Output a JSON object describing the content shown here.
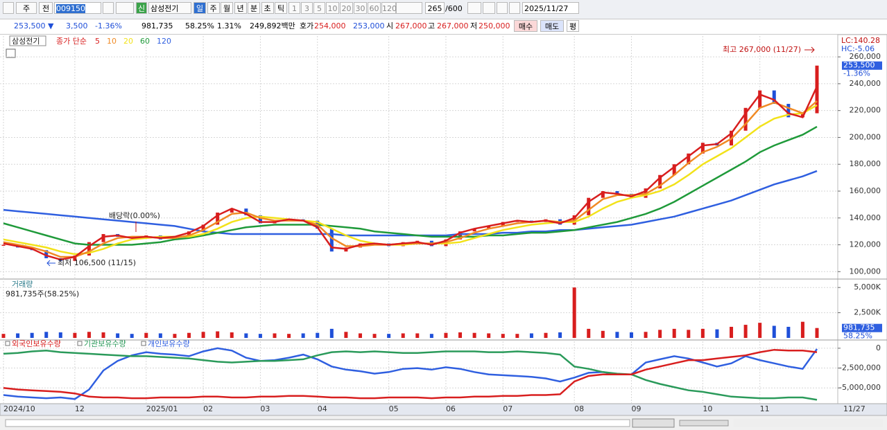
{
  "toolbar": {
    "period_unit": "주",
    "prev": "전",
    "code": "009150",
    "new_badge": "신",
    "name": "삼성전기",
    "periods": [
      "일",
      "주",
      "월",
      "년",
      "분",
      "초",
      "틱"
    ],
    "intervals": [
      "1",
      "3",
      "5",
      "10",
      "20",
      "30",
      "60",
      "120"
    ],
    "count": "265",
    "count_max": "/600",
    "date": "2025/11/27"
  },
  "quote": {
    "price": "253,500 ▼",
    "change": "3,500",
    "change_pct": "-1.36%",
    "volume": "981,735",
    "volume_pct": "58.25%",
    "turnover": "1.31%",
    "amount": "249,892백만",
    "bid_ask_label": "호가",
    "ask": "254,000",
    "bid": "253,000",
    "open_label": "시",
    "open": "267,000",
    "high_label": "고",
    "high": "267,000",
    "low_label": "저",
    "low": "250,000",
    "buy": "매수",
    "sell": "매도",
    "avg": "평"
  },
  "chart_data": [
    {
      "type": "line",
      "title": "삼성전기",
      "legend_prefix": "종가 단순",
      "categories": [
        "2024/10",
        null,
        null,
        null,
        null,
        "12",
        null,
        null,
        null,
        null,
        "2025/01",
        null,
        null,
        null,
        "02",
        null,
        null,
        null,
        "03",
        null,
        null,
        null,
        "04",
        null,
        null,
        null,
        null,
        "05",
        null,
        null,
        null,
        "06",
        null,
        null,
        null,
        "07",
        null,
        null,
        null,
        null,
        "08",
        null,
        null,
        null,
        "09",
        null,
        null,
        null,
        null,
        "10",
        null,
        null,
        null,
        "11",
        null,
        null,
        null,
        null
      ],
      "x_end_label": "11/27",
      "close": [
        120000,
        118000,
        116000,
        110000,
        108000,
        112000,
        122000,
        128000,
        126000,
        125000,
        127000,
        124000,
        126000,
        130000,
        135000,
        144000,
        147000,
        142000,
        136000,
        138000,
        139000,
        138000,
        132000,
        115000,
        118000,
        121000,
        121000,
        119000,
        122000,
        123000,
        119000,
        124000,
        130000,
        132000,
        134000,
        137000,
        138000,
        137000,
        139000,
        135000,
        142000,
        155000,
        160000,
        158000,
        155000,
        162000,
        172000,
        180000,
        188000,
        196000,
        194000,
        205000,
        222000,
        235000,
        225000,
        215000,
        218000,
        253500
      ],
      "close_up_color": "#d81e1e",
      "close_down_color": "#1f4fd8",
      "series": [
        {
          "name": "5",
          "color": "#d81e1e",
          "values": [
            121000,
            119000,
            117000,
            112000,
            109000,
            111000,
            119000,
            126000,
            127000,
            125000,
            126000,
            125000,
            126000,
            129000,
            134000,
            142000,
            147000,
            143000,
            137000,
            137000,
            139000,
            138000,
            133000,
            118000,
            117000,
            120000,
            121000,
            120000,
            121000,
            122000,
            120000,
            123000,
            129000,
            132000,
            134000,
            136000,
            138000,
            137000,
            138000,
            136000,
            140000,
            152000,
            159000,
            158000,
            156000,
            160000,
            170000,
            178000,
            186000,
            194000,
            195000,
            203000,
            218000,
            232000,
            228000,
            218000,
            215000,
            238000
          ]
        },
        {
          "name": "10",
          "color": "#f08a24",
          "values": [
            122000,
            120000,
            118000,
            115000,
            111000,
            111000,
            115000,
            121000,
            125000,
            126000,
            126000,
            125000,
            125000,
            127000,
            131000,
            137000,
            143000,
            144000,
            140000,
            138000,
            138000,
            138000,
            135000,
            125000,
            119000,
            119000,
            120000,
            120000,
            121000,
            121000,
            121000,
            122000,
            125000,
            129000,
            132000,
            134000,
            136000,
            137000,
            138000,
            137000,
            138000,
            146000,
            154000,
            157000,
            157000,
            158000,
            164000,
            172000,
            181000,
            189000,
            193000,
            199000,
            210000,
            222000,
            226000,
            222000,
            218000,
            227000
          ]
        },
        {
          "name": "20",
          "color": "#f2e21a",
          "values": [
            124000,
            122000,
            120000,
            118000,
            115000,
            113000,
            114000,
            117000,
            121000,
            124000,
            125000,
            126000,
            126000,
            126000,
            128000,
            132000,
            137000,
            140000,
            141000,
            140000,
            139000,
            138000,
            137000,
            132000,
            127000,
            123000,
            121000,
            120000,
            120000,
            121000,
            121000,
            121000,
            122000,
            125000,
            128000,
            131000,
            133000,
            135000,
            136000,
            137000,
            137000,
            141000,
            147000,
            152000,
            155000,
            157000,
            160000,
            165000,
            172000,
            180000,
            186000,
            192000,
            200000,
            208000,
            214000,
            217000,
            218000,
            224000
          ]
        },
        {
          "name": "60",
          "color": "#1f9a3a",
          "values": [
            136000,
            133000,
            130000,
            127000,
            124000,
            121000,
            120000,
            120000,
            120000,
            120000,
            121000,
            122000,
            124000,
            125000,
            127000,
            129000,
            131000,
            133000,
            134000,
            135000,
            135000,
            135000,
            135000,
            134000,
            133000,
            132000,
            130000,
            129000,
            128000,
            127000,
            126000,
            126000,
            126000,
            126000,
            127000,
            127000,
            128000,
            129000,
            129000,
            130000,
            131000,
            133000,
            135000,
            137000,
            140000,
            143000,
            147000,
            152000,
            158000,
            164000,
            170000,
            176000,
            182000,
            189000,
            194000,
            198000,
            202000,
            208000
          ]
        },
        {
          "name": "120",
          "color": "#2f5fe0",
          "values": [
            146000,
            145000,
            144000,
            143000,
            142000,
            141000,
            140000,
            139000,
            138000,
            137000,
            136000,
            135000,
            134000,
            132000,
            130000,
            129000,
            128000,
            128000,
            128000,
            128000,
            128000,
            128000,
            128000,
            128000,
            127000,
            127000,
            127000,
            127000,
            127000,
            127000,
            127000,
            127000,
            128000,
            128000,
            128000,
            129000,
            129000,
            130000,
            130000,
            131000,
            131000,
            132000,
            133000,
            134000,
            135000,
            137000,
            139000,
            141000,
            144000,
            147000,
            150000,
            153000,
            157000,
            161000,
            165000,
            168000,
            171000,
            175000
          ]
        }
      ],
      "ylim": [
        95000,
        274000
      ],
      "yticks": [
        {
          "value": 100000,
          "label": "100,000"
        },
        {
          "value": 120000,
          "label": "120,000"
        },
        {
          "value": 140000,
          "label": "140,000"
        },
        {
          "value": 160000,
          "label": "160,000"
        },
        {
          "value": 180000,
          "label": "180,000"
        },
        {
          "value": 200000,
          "label": "200,000"
        },
        {
          "value": 220000,
          "label": "220,000"
        },
        {
          "value": 240000,
          "label": "240,000"
        },
        {
          "value": 260000,
          "label": "260,000"
        }
      ],
      "grid": true,
      "annotations": {
        "high": "최고 267,000 (11/27)",
        "low": "최저 106,500 (11/15)",
        "dividend": "배당락(0.00%)",
        "lc": "LC:140.28",
        "hc": "HC:-5.06",
        "last": "253,500",
        "last_pct": "-1.36%"
      },
      "last_value": 253500
    },
    {
      "type": "bar",
      "title": "거래량",
      "subtitle": "981,735주(58.25%)",
      "color": "#d81e1e",
      "values": [
        400,
        450,
        500,
        600,
        550,
        500,
        600,
        550,
        450,
        400,
        500,
        450,
        400,
        500,
        600,
        650,
        550,
        450,
        400,
        450,
        400,
        450,
        500,
        900,
        600,
        450,
        400,
        400,
        450,
        450,
        400,
        500,
        550,
        500,
        450,
        400,
        400,
        450,
        500,
        550,
        5000,
        900,
        700,
        600,
        550,
        600,
        800,
        900,
        800,
        900,
        850,
        1100,
        1300,
        1500,
        1200,
        1100,
        1600,
        981.735
      ],
      "ylim": [
        0,
        5700
      ],
      "yticks": [
        {
          "value": 2500,
          "label": "2,500K"
        },
        {
          "value": 5000,
          "label": "5,000K"
        }
      ],
      "last_label": "981,735",
      "last_pct": "58.25%"
    },
    {
      "type": "line",
      "series": [
        {
          "name": "외국인보유수량",
          "color": "#d81e1e",
          "values": [
            -5000000,
            -5200000,
            -5300000,
            -5400000,
            -5500000,
            -5700000,
            -6100000,
            -6200000,
            -6200000,
            -6300000,
            -6300000,
            -6200000,
            -6200000,
            -6200000,
            -6100000,
            -6100000,
            -6200000,
            -6200000,
            -6100000,
            -6100000,
            -6000000,
            -6000000,
            -6100000,
            -6200000,
            -6200000,
            -6300000,
            -6300000,
            -6200000,
            -6200000,
            -6200000,
            -6300000,
            -6200000,
            -6200000,
            -6100000,
            -6100000,
            -6000000,
            -6000000,
            -5900000,
            -5900000,
            -5800000,
            -4200000,
            -3500000,
            -3300000,
            -3300000,
            -3300000,
            -2700000,
            -2300000,
            -1900000,
            -1500000,
            -1500000,
            -1300000,
            -1100000,
            -900000,
            -500000,
            -200000,
            -300000,
            -300000,
            -500000
          ]
        },
        {
          "name": "기관보유수량",
          "color": "#2a9a5a",
          "values": [
            -700000,
            -600000,
            -400000,
            -300000,
            -500000,
            -600000,
            -700000,
            -800000,
            -900000,
            -1000000,
            -1000000,
            -1100000,
            -1200000,
            -1300000,
            -1500000,
            -1700000,
            -1800000,
            -1700000,
            -1600000,
            -1600000,
            -1500000,
            -1400000,
            -900000,
            -500000,
            -400000,
            -500000,
            -400000,
            -500000,
            -600000,
            -600000,
            -500000,
            -400000,
            -400000,
            -400000,
            -500000,
            -500000,
            -400000,
            -500000,
            -600000,
            -800000,
            -2300000,
            -2600000,
            -3000000,
            -3200000,
            -3300000,
            -4000000,
            -4500000,
            -4900000,
            -5300000,
            -5500000,
            -5800000,
            -6100000,
            -6200000,
            -6300000,
            -6300000,
            -6200000,
            -6200000,
            -6500000
          ]
        },
        {
          "name": "개인보유수량",
          "color": "#2f5fe0",
          "values": [
            -5900000,
            -6100000,
            -6200000,
            -6300000,
            -6200000,
            -6400000,
            -5200000,
            -2800000,
            -1600000,
            -900000,
            -500000,
            -700000,
            -800000,
            -1000000,
            -400000,
            0,
            -300000,
            -1200000,
            -1600000,
            -1500000,
            -1200000,
            -800000,
            -1400000,
            -2300000,
            -2700000,
            -2900000,
            -3200000,
            -3000000,
            -2600000,
            -2500000,
            -2700000,
            -2400000,
            -2600000,
            -3000000,
            -3300000,
            -3400000,
            -3500000,
            -3600000,
            -3800000,
            -4200000,
            -3700000,
            -3100000,
            -3000000,
            -3300000,
            -3300000,
            -1800000,
            -1400000,
            -1000000,
            -1300000,
            -1800000,
            -2300000,
            -1900000,
            -1000000,
            -1500000,
            -1900000,
            -2300000,
            -2600000,
            -100000
          ]
        }
      ],
      "ylim": [
        -6900000,
        950000
      ],
      "yticks": [
        0,
        {
          "value": -2500000,
          "label": "-2,500,000"
        },
        {
          "value": -5000000,
          "label": "-5,000,000"
        }
      ]
    }
  ]
}
